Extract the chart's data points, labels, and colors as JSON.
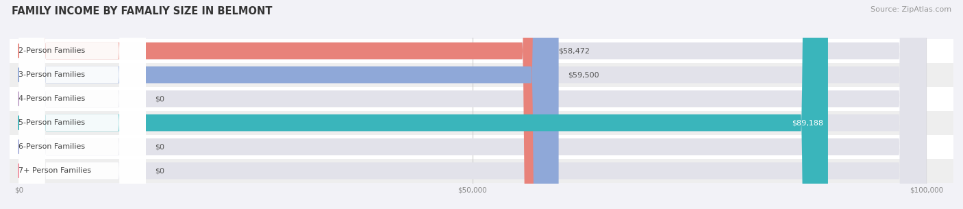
{
  "title": "FAMILY INCOME BY FAMALIY SIZE IN BELMONT",
  "source": "Source: ZipAtlas.com",
  "categories": [
    "2-Person Families",
    "3-Person Families",
    "4-Person Families",
    "5-Person Families",
    "6-Person Families",
    "7+ Person Families"
  ],
  "values": [
    58472,
    59500,
    0,
    89188,
    0,
    0
  ],
  "bar_colors": [
    "#e8827a",
    "#8fa8d8",
    "#c4a8cc",
    "#3ab5bb",
    "#aab2dd",
    "#f090a0"
  ],
  "value_labels": [
    "$58,472",
    "$59,500",
    "$0",
    "$89,188",
    "$0",
    "$0"
  ],
  "value_label_inside": [
    false,
    false,
    false,
    true,
    false,
    false
  ],
  "xlim_max": 100000,
  "xticks": [
    0,
    50000,
    100000
  ],
  "xtick_labels": [
    "$0",
    "$50,000",
    "$100,000"
  ],
  "bg_color": "#f2f2f7",
  "row_bg_even": "#ffffff",
  "row_bg_odd": "#eeeeee",
  "bar_track_color": "#e2e2ea",
  "title_fontsize": 10.5,
  "source_fontsize": 8,
  "label_fontsize": 8,
  "value_fontsize": 8
}
